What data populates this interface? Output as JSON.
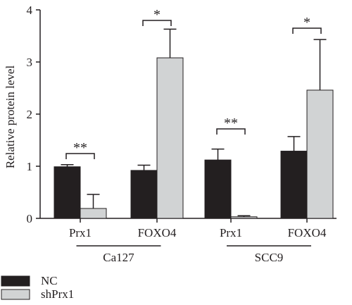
{
  "chart_data": {
    "type": "bar",
    "ylabel": "Relative protein level",
    "ylim": [
      0,
      4
    ],
    "yticks": [
      0,
      1,
      2,
      3,
      4
    ],
    "categories": [
      "Prx1",
      "FOXO4",
      "Prx1",
      "FOXO4"
    ],
    "groups": [
      {
        "label": "Ca127",
        "categories": [
          0,
          1
        ]
      },
      {
        "label": "SCC9",
        "categories": [
          2,
          3
        ]
      }
    ],
    "series": [
      {
        "name": "NC",
        "color": "#231f20",
        "values": [
          0.99,
          0.92,
          1.12,
          1.29
        ],
        "errors": [
          0.04,
          0.1,
          0.21,
          0.28
        ]
      },
      {
        "name": "shPrx1",
        "color": "#d1d3d4",
        "values": [
          0.19,
          3.08,
          0.03,
          2.46
        ],
        "errors": [
          0.27,
          0.55,
          0.02,
          0.97
        ]
      }
    ],
    "significance": [
      {
        "category": 0,
        "label": "**"
      },
      {
        "category": 1,
        "label": "*"
      },
      {
        "category": 2,
        "label": "**"
      },
      {
        "category": 3,
        "label": "*"
      }
    ],
    "legend_position": "bottom-left"
  }
}
